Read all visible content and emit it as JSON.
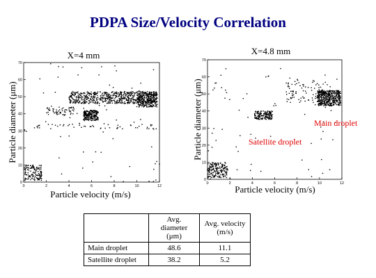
{
  "title": "PDPA Size/Velocity Correlation",
  "chart_data": [
    {
      "type": "scatter",
      "title": "X=4 mm",
      "xlabel": "Particle velocity (m/s)",
      "ylabel": "Particle diameter (μm)",
      "xlim": [
        0,
        12
      ],
      "ylim": [
        0,
        70
      ],
      "xticks": [
        0,
        2,
        4,
        6,
        8,
        10,
        12
      ],
      "yticks": [
        0,
        10,
        20,
        30,
        40,
        50,
        60,
        70
      ],
      "clusters": [
        {
          "x": [
            4.0,
            11.8
          ],
          "y": [
            46,
            53
          ],
          "n": 650
        },
        {
          "x": [
            10.0,
            11.8
          ],
          "y": [
            44,
            53
          ],
          "n": 250
        },
        {
          "x": [
            5.3,
            6.6
          ],
          "y": [
            36,
            42
          ],
          "n": 220
        },
        {
          "x": [
            0.0,
            1.6
          ],
          "y": [
            1,
            10
          ],
          "n": 130
        },
        {
          "x": [
            2.0,
            4.5
          ],
          "y": [
            39,
            44
          ],
          "n": 60
        },
        {
          "x": [
            1.0,
            11.8
          ],
          "y": [
            31,
            34
          ],
          "n": 50
        },
        {
          "x": [
            0.0,
            12.0
          ],
          "y": [
            0,
            70
          ],
          "n": 70
        }
      ]
    },
    {
      "type": "scatter",
      "title": "X=4.8 mm",
      "xlabel": "Particle velocity (m/s)",
      "ylabel": "Particle diameter (μm)",
      "xlim": [
        0,
        12
      ],
      "ylim": [
        0,
        70
      ],
      "xticks": [
        0,
        2,
        4,
        6,
        8,
        10,
        12
      ],
      "yticks": [
        0,
        10,
        20,
        30,
        40,
        50,
        60,
        70
      ],
      "annotations": [
        {
          "text": "Main droplet",
          "x": 9.8,
          "y": 33
        },
        {
          "text": "Satellite droplet",
          "x": 3.2,
          "y": 22
        }
      ],
      "clusters": [
        {
          "x": [
            9.8,
            11.9
          ],
          "y": [
            43,
            52
          ],
          "n": 450
        },
        {
          "x": [
            7.0,
            11.0
          ],
          "y": [
            45,
            58
          ],
          "n": 90
        },
        {
          "x": [
            4.2,
            5.8
          ],
          "y": [
            35,
            40
          ],
          "n": 160
        },
        {
          "x": [
            0.0,
            1.8
          ],
          "y": [
            1,
            10
          ],
          "n": 180
        },
        {
          "x": [
            0.0,
            12.0
          ],
          "y": [
            0,
            65
          ],
          "n": 70
        }
      ]
    }
  ],
  "table": {
    "headers": [
      "",
      "Avg. diameter (μm)",
      "Avg. velocity (m/s)"
    ],
    "header_lines": [
      [
        "",
        ""
      ],
      [
        "Avg. diameter",
        "(μm)"
      ],
      [
        "Avg. velocity",
        "(m/s)"
      ]
    ],
    "rows": [
      {
        "label": "Main droplet",
        "diameter": "48.6",
        "velocity": "11.1"
      },
      {
        "label": "Satellite droplet",
        "diameter": "38.2",
        "velocity": "5.2"
      }
    ]
  }
}
